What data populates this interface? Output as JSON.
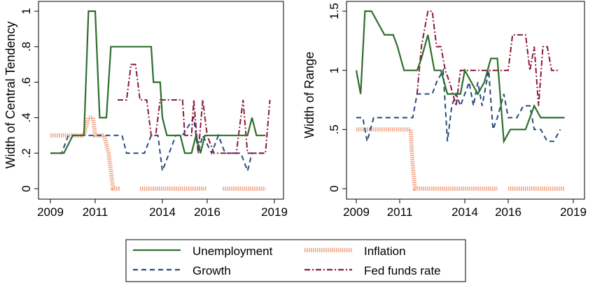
{
  "legend": {
    "entries": [
      {
        "key": "unemployment",
        "label": "Unemployment"
      },
      {
        "key": "inflation",
        "label": "Inflation"
      },
      {
        "key": "growth",
        "label": "Growth"
      },
      {
        "key": "fedfunds",
        "label": "Fed funds rate"
      }
    ],
    "placement": "bottom-center"
  },
  "colors": {
    "unemployment": "#2d6e2d",
    "growth": "#2a4a7a",
    "inflation": "#f0a080",
    "fedfunds": "#8b1a3a"
  },
  "chart_data": [
    {
      "type": "line",
      "title": "",
      "xlabel": "",
      "ylabel": "Width of Central Tendency",
      "xlim": [
        2009,
        2019
      ],
      "ylim": [
        0,
        1
      ],
      "grid": false,
      "xticks": [
        {
          "v": 2009,
          "label": "2009"
        },
        {
          "v": 2011,
          "label": "2011"
        },
        {
          "v": 2014,
          "label": "2014"
        },
        {
          "v": 2016,
          "label": "2016"
        },
        {
          "v": 2019,
          "label": "2019"
        }
      ],
      "yticks": [
        {
          "v": 0,
          "label": "0"
        },
        {
          "v": 0.2,
          "label": ".2"
        },
        {
          "v": 0.4,
          "label": ".4"
        },
        {
          "v": 0.6,
          "label": ".6"
        },
        {
          "v": 0.8,
          "label": ".8"
        },
        {
          "v": 1,
          "label": "1"
        }
      ],
      "series": [
        {
          "key": "unemployment",
          "points": [
            [
              2009,
              0.2
            ],
            [
              2009.6,
              0.2
            ],
            [
              2010,
              0.3
            ],
            [
              2010.5,
              0.3
            ],
            [
              2010.7,
              1.0
            ],
            [
              2011.0,
              1.0
            ],
            [
              2011.2,
              0.4
            ],
            [
              2011.5,
              0.4
            ],
            [
              2011.7,
              0.8
            ],
            [
              2012.0,
              0.8
            ],
            [
              2012.5,
              0.8
            ],
            [
              2013.0,
              0.8
            ],
            [
              2013.5,
              0.8
            ],
            [
              2013.6,
              0.6
            ],
            [
              2013.9,
              0.6
            ],
            [
              2014.0,
              0.4
            ],
            [
              2014.2,
              0.3
            ],
            [
              2014.5,
              0.3
            ],
            [
              2014.8,
              0.3
            ],
            [
              2015.0,
              0.2
            ],
            [
              2015.3,
              0.2
            ],
            [
              2015.5,
              0.3
            ],
            [
              2015.7,
              0.2
            ],
            [
              2015.9,
              0.3
            ],
            [
              2016.2,
              0.3
            ],
            [
              2016.5,
              0.3
            ],
            [
              2017.0,
              0.3
            ],
            [
              2017.5,
              0.3
            ],
            [
              2017.8,
              0.3
            ],
            [
              2018.0,
              0.4
            ],
            [
              2018.2,
              0.3
            ],
            [
              2018.6,
              0.3
            ]
          ]
        },
        {
          "key": "growth",
          "points": [
            [
              2009,
              0.2
            ],
            [
              2009.5,
              0.2
            ],
            [
              2009.8,
              0.3
            ],
            [
              2010.5,
              0.3
            ],
            [
              2011.0,
              0.3
            ],
            [
              2011.5,
              0.3
            ],
            [
              2011.7,
              0.3
            ],
            [
              2012.2,
              0.3
            ],
            [
              2012.4,
              0.2
            ],
            [
              2013.2,
              0.2
            ],
            [
              2013.5,
              0.3
            ],
            [
              2013.8,
              0.3
            ],
            [
              2014.0,
              0.1
            ],
            [
              2014.3,
              0.2
            ],
            [
              2014.6,
              0.3
            ],
            [
              2014.9,
              0.3
            ],
            [
              2015.4,
              0.4
            ],
            [
              2015.6,
              0.2
            ],
            [
              2015.8,
              0.3
            ],
            [
              2016.2,
              0.2
            ],
            [
              2016.5,
              0.3
            ],
            [
              2016.8,
              0.2
            ],
            [
              2017.5,
              0.2
            ],
            [
              2017.8,
              0.1
            ],
            [
              2018.0,
              0.2
            ],
            [
              2018.7,
              0.2
            ]
          ]
        },
        {
          "key": "inflation",
          "points": [
            [
              2009,
              0.3
            ],
            [
              2009.6,
              0.3
            ],
            [
              2010.0,
              0.3
            ],
            [
              2010.5,
              0.3
            ],
            [
              2010.7,
              0.4
            ],
            [
              2010.9,
              0.4
            ],
            [
              2011.0,
              0.3
            ],
            [
              2011.4,
              0.3
            ],
            [
              2011.6,
              0.2
            ],
            [
              2011.8,
              0.0
            ],
            [
              2012.1,
              0.0
            ]
          ],
          "segments2": [
            [
              [
                2013.0,
                0.0
              ],
              [
                2016.0,
                0.0
              ]
            ],
            [
              [
                2016.7,
                0.0
              ],
              [
                2018.6,
                0.0
              ]
            ]
          ]
        },
        {
          "key": "fedfunds",
          "points": [
            [
              2012.0,
              0.5
            ],
            [
              2012.4,
              0.5
            ],
            [
              2012.6,
              0.7
            ],
            [
              2012.8,
              0.7
            ],
            [
              2013.0,
              0.5
            ],
            [
              2013.3,
              0.5
            ],
            [
              2013.5,
              0.3
            ],
            [
              2013.7,
              0.3
            ],
            [
              2013.9,
              0.5
            ],
            [
              2014.2,
              0.5
            ],
            [
              2014.6,
              0.5
            ],
            [
              2014.9,
              0.5
            ],
            [
              2015.0,
              0.3
            ],
            [
              2015.3,
              0.3
            ],
            [
              2015.4,
              0.5
            ],
            [
              2015.6,
              0.2
            ],
            [
              2015.8,
              0.5
            ],
            [
              2016.0,
              0.3
            ],
            [
              2016.3,
              0.2
            ],
            [
              2016.5,
              0.2
            ],
            [
              2016.8,
              0.2
            ],
            [
              2017.0,
              0.2
            ],
            [
              2017.3,
              0.2
            ],
            [
              2017.6,
              0.5
            ],
            [
              2017.8,
              0.2
            ],
            [
              2018.0,
              0.2
            ],
            [
              2018.3,
              0.2
            ],
            [
              2018.6,
              0.2
            ],
            [
              2018.8,
              0.5
            ]
          ]
        }
      ]
    },
    {
      "type": "line",
      "title": "",
      "xlabel": "",
      "ylabel": "Width of Range",
      "xlim": [
        2009,
        2019
      ],
      "ylim": [
        0,
        1.5
      ],
      "grid": false,
      "xticks": [
        {
          "v": 2009,
          "label": "2009"
        },
        {
          "v": 2011,
          "label": "2011"
        },
        {
          "v": 2014,
          "label": "2014"
        },
        {
          "v": 2016,
          "label": "2016"
        },
        {
          "v": 2019,
          "label": "2019"
        }
      ],
      "yticks": [
        {
          "v": 0,
          "label": "0"
        },
        {
          "v": 0.5,
          "label": ".5"
        },
        {
          "v": 1,
          "label": "1"
        },
        {
          "v": 1.5,
          "label": "1.5"
        }
      ],
      "series": [
        {
          "key": "unemployment",
          "points": [
            [
              2009,
              1.0
            ],
            [
              2009.2,
              0.8
            ],
            [
              2009.4,
              1.5
            ],
            [
              2009.7,
              1.5
            ],
            [
              2010.0,
              1.4
            ],
            [
              2010.3,
              1.3
            ],
            [
              2010.7,
              1.3
            ],
            [
              2010.9,
              1.2
            ],
            [
              2011.2,
              1.0
            ],
            [
              2011.5,
              1.0
            ],
            [
              2011.8,
              1.0
            ],
            [
              2012.0,
              1.1
            ],
            [
              2012.3,
              1.3
            ],
            [
              2012.6,
              1.0
            ],
            [
              2012.9,
              1.0
            ],
            [
              2013.2,
              0.8
            ],
            [
              2013.5,
              0.8
            ],
            [
              2013.8,
              0.8
            ],
            [
              2014.0,
              1.0
            ],
            [
              2014.3,
              0.9
            ],
            [
              2014.6,
              0.8
            ],
            [
              2014.9,
              0.9
            ],
            [
              2015.2,
              1.1
            ],
            [
              2015.5,
              1.1
            ],
            [
              2015.8,
              0.4
            ],
            [
              2016.1,
              0.5
            ],
            [
              2016.5,
              0.5
            ],
            [
              2016.8,
              0.5
            ],
            [
              2017.2,
              0.7
            ],
            [
              2017.5,
              0.6
            ],
            [
              2017.8,
              0.6
            ],
            [
              2018.1,
              0.6
            ],
            [
              2018.6,
              0.6
            ]
          ]
        },
        {
          "key": "growth",
          "points": [
            [
              2009,
              0.6
            ],
            [
              2009.3,
              0.6
            ],
            [
              2009.5,
              0.4
            ],
            [
              2009.8,
              0.6
            ],
            [
              2010.3,
              0.6
            ],
            [
              2010.8,
              0.6
            ],
            [
              2011.2,
              0.6
            ],
            [
              2011.6,
              0.6
            ],
            [
              2011.8,
              0.8
            ],
            [
              2012.2,
              0.8
            ],
            [
              2012.5,
              0.8
            ],
            [
              2012.7,
              0.9
            ],
            [
              2013.0,
              1.0
            ],
            [
              2013.2,
              0.4
            ],
            [
              2013.4,
              0.7
            ],
            [
              2013.6,
              0.8
            ],
            [
              2013.8,
              0.7
            ],
            [
              2014.0,
              0.8
            ],
            [
              2014.2,
              0.9
            ],
            [
              2014.4,
              0.7
            ],
            [
              2014.6,
              0.9
            ],
            [
              2014.8,
              0.7
            ],
            [
              2015.1,
              1.0
            ],
            [
              2015.3,
              0.5
            ],
            [
              2015.5,
              0.6
            ],
            [
              2015.8,
              0.8
            ],
            [
              2016.0,
              0.6
            ],
            [
              2016.4,
              0.6
            ],
            [
              2016.7,
              0.7
            ],
            [
              2017.0,
              0.7
            ],
            [
              2017.2,
              0.5
            ],
            [
              2017.5,
              0.5
            ],
            [
              2017.8,
              0.4
            ],
            [
              2018.1,
              0.4
            ],
            [
              2018.4,
              0.5
            ]
          ]
        },
        {
          "key": "inflation",
          "points": [
            [
              2009,
              0.5
            ],
            [
              2009.5,
              0.5
            ],
            [
              2010.0,
              0.5
            ],
            [
              2010.5,
              0.5
            ],
            [
              2011.0,
              0.5
            ],
            [
              2011.3,
              0.5
            ],
            [
              2011.5,
              0.5
            ],
            [
              2011.6,
              0.2
            ],
            [
              2011.7,
              0.0
            ],
            [
              2012.0,
              0.0
            ],
            [
              2013.0,
              0.0
            ],
            [
              2014.0,
              0.0
            ],
            [
              2015.0,
              0.0
            ],
            [
              2015.5,
              0.0
            ]
          ],
          "segments2": [
            [
              [
                2016.0,
                0.0
              ],
              [
                2018.6,
                0.0
              ]
            ]
          ]
        },
        {
          "key": "fedfunds",
          "points": [
            [
              2011.8,
              0.8
            ],
            [
              2012.0,
              1.2
            ],
            [
              2012.3,
              1.5
            ],
            [
              2012.5,
              1.5
            ],
            [
              2012.7,
              1.2
            ],
            [
              2012.9,
              1.2
            ],
            [
              2013.1,
              1.0
            ],
            [
              2013.3,
              0.9
            ],
            [
              2013.6,
              0.7
            ],
            [
              2013.8,
              1.0
            ],
            [
              2014.0,
              1.0
            ],
            [
              2014.3,
              1.0
            ],
            [
              2014.6,
              1.0
            ],
            [
              2014.9,
              1.0
            ],
            [
              2015.2,
              1.0
            ],
            [
              2015.5,
              1.0
            ],
            [
              2015.8,
              1.0
            ],
            [
              2016.0,
              1.0
            ],
            [
              2016.2,
              1.3
            ],
            [
              2016.5,
              1.3
            ],
            [
              2016.8,
              1.3
            ],
            [
              2017.0,
              1.0
            ],
            [
              2017.2,
              1.2
            ],
            [
              2017.4,
              0.7
            ],
            [
              2017.6,
              1.2
            ],
            [
              2017.8,
              1.2
            ],
            [
              2018.0,
              1.0
            ],
            [
              2018.3,
              1.0
            ]
          ]
        }
      ]
    }
  ]
}
